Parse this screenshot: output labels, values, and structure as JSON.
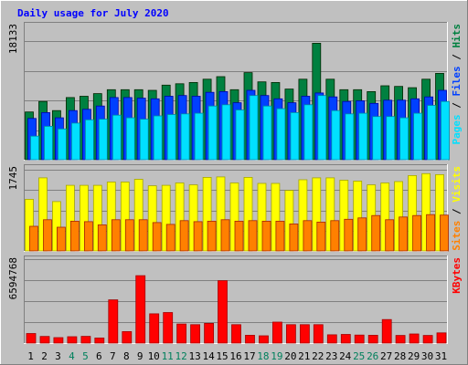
{
  "chart_data": [
    {
      "type": "bar",
      "title": "Daily usage for July 2020",
      "categories": [
        "1",
        "2",
        "3",
        "4",
        "5",
        "6",
        "7",
        "8",
        "9",
        "10",
        "11",
        "12",
        "13",
        "14",
        "15",
        "16",
        "17",
        "18",
        "19",
        "20",
        "21",
        "22",
        "23",
        "24",
        "25",
        "26",
        "27",
        "28",
        "29",
        "30",
        "31"
      ],
      "weekend_days": [
        "4",
        "5",
        "11",
        "12",
        "18",
        "19",
        "25",
        "26"
      ],
      "ymax_label": "18133",
      "ylim": [
        0,
        18133
      ],
      "axis_labels": [
        "Pages",
        "Files",
        "Hits"
      ],
      "series": [
        {
          "name": "Hits",
          "color": "#008040",
          "values": [
            7300,
            8900,
            7500,
            9500,
            9700,
            10100,
            10700,
            10700,
            10700,
            10600,
            11400,
            11600,
            11800,
            12300,
            12700,
            10700,
            13300,
            11900,
            11800,
            10800,
            12300,
            17800,
            12300,
            10700,
            10700,
            10400,
            11300,
            11200,
            11000,
            12300,
            13200
          ]
        },
        {
          "name": "Files",
          "color": "#0040ff",
          "values": [
            6300,
            7200,
            6400,
            7500,
            7700,
            8200,
            9500,
            9500,
            9400,
            9300,
            9700,
            9800,
            9700,
            10300,
            10400,
            8700,
            10600,
            9800,
            9300,
            8700,
            9700,
            10200,
            9600,
            8900,
            9000,
            8600,
            9100,
            9100,
            9300,
            9600,
            10600
          ]
        },
        {
          "name": "Pages",
          "color": "#00e0ff",
          "values": [
            3600,
            5100,
            4700,
            5600,
            6100,
            6200,
            6800,
            6400,
            6200,
            6700,
            6900,
            7000,
            7100,
            8200,
            8400,
            7600,
            9800,
            8200,
            7800,
            7200,
            8400,
            9800,
            7500,
            7000,
            7100,
            6600,
            6600,
            6400,
            7100,
            8300,
            8900
          ]
        }
      ]
    },
    {
      "type": "bar",
      "categories": [
        "1",
        "2",
        "3",
        "4",
        "5",
        "6",
        "7",
        "8",
        "9",
        "10",
        "11",
        "12",
        "13",
        "14",
        "15",
        "16",
        "17",
        "18",
        "19",
        "20",
        "21",
        "22",
        "23",
        "24",
        "25",
        "26",
        "27",
        "28",
        "29",
        "30",
        "31"
      ],
      "ymax_label": "1745",
      "ylim": [
        0,
        1745
      ],
      "axis_labels": [
        "Sites",
        "Visits"
      ],
      "series": [
        {
          "name": "Visits",
          "color": "#ffff00",
          "values": [
            1110,
            1570,
            1060,
            1410,
            1410,
            1410,
            1480,
            1480,
            1540,
            1400,
            1410,
            1460,
            1420,
            1580,
            1590,
            1460,
            1580,
            1450,
            1450,
            1300,
            1530,
            1570,
            1570,
            1520,
            1500,
            1420,
            1460,
            1490,
            1620,
            1660,
            1640
          ]
        },
        {
          "name": "Sites",
          "color": "#ff8000",
          "values": [
            530,
            670,
            510,
            640,
            630,
            560,
            670,
            670,
            670,
            610,
            570,
            650,
            630,
            640,
            670,
            640,
            650,
            640,
            640,
            580,
            650,
            620,
            650,
            680,
            710,
            760,
            670,
            730,
            760,
            780,
            770
          ]
        }
      ]
    },
    {
      "type": "bar",
      "categories": [
        "1",
        "2",
        "3",
        "4",
        "5",
        "6",
        "7",
        "8",
        "9",
        "10",
        "11",
        "12",
        "13",
        "14",
        "15",
        "16",
        "17",
        "18",
        "19",
        "20",
        "21",
        "22",
        "23",
        "24",
        "25",
        "26",
        "27",
        "28",
        "29",
        "30",
        "31"
      ],
      "ymax_label": "6594768",
      "ylim": [
        0,
        6594768
      ],
      "axis_labels": [
        "KBytes"
      ],
      "series": [
        {
          "name": "KBytes",
          "color": "#ff0000",
          "values": [
            750000,
            520000,
            430000,
            500000,
            530000,
            400000,
            3400000,
            900000,
            5300000,
            2300000,
            2400000,
            1500000,
            1450000,
            1550000,
            4900000,
            1450000,
            620000,
            570000,
            1650000,
            1450000,
            1450000,
            1450000,
            650000,
            680000,
            630000,
            620000,
            1850000,
            600000,
            720000,
            600000,
            800000
          ]
        }
      ]
    }
  ],
  "colors": {
    "frame_bg": "#c0c0c0",
    "plot_bg": "#c0c0c0",
    "title": "#0000ff",
    "weekday_label": "#000000",
    "weekend_label": "#00805c",
    "gridline": "#808080"
  }
}
